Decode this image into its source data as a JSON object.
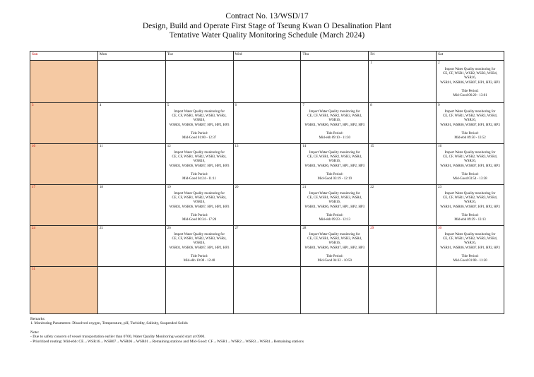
{
  "title": {
    "line1": "Contract No. 13/WSD/17",
    "line2": "Design, Build and Operate First Stage of Tseung Kwan O Desalination Plant",
    "line3": "Tentative Water Quality Monitoring Schedule (March 2024)"
  },
  "colors": {
    "sunday_shade": "#F5C9A3",
    "holiday_red": "#C00000",
    "grid_line": "#2b2b2b"
  },
  "calendar": {
    "month": "March 2024",
    "day_headers": [
      "Sun",
      "Mon",
      "Tue",
      "Wed",
      "Thu",
      "Fri",
      "Sat"
    ],
    "monitoring_text": {
      "line1": "Import Water Quality monitoring for",
      "line2": "CE, CF, WSR1, WSR2, WSR3, WSR4, WSR16,",
      "line3": "WSR01, WSR06, WSR07, HP1, HP2, HP3",
      "tide_label": "Tide Period:"
    },
    "weeks": [
      [
        {
          "date": "",
          "shaded": true
        },
        {
          "date": ""
        },
        {
          "date": ""
        },
        {
          "date": ""
        },
        {
          "date": ""
        },
        {
          "date": "1"
        },
        {
          "date": "2",
          "monitoring": true,
          "tide": "Mid-Good 06:20 - 13:01"
        }
      ],
      [
        {
          "date": "3",
          "shaded": true,
          "red": true
        },
        {
          "date": "4"
        },
        {
          "date": "5",
          "monitoring": true,
          "tide": "Mid-Good 01:00 - 12:37"
        },
        {
          "date": "6"
        },
        {
          "date": "7",
          "monitoring": true,
          "tide": "Mid-ebb 09:10 - 11:30"
        },
        {
          "date": "8"
        },
        {
          "date": "9",
          "monitoring": true,
          "tide": "Mid-ebb 09:50 - 13:52"
        }
      ],
      [
        {
          "date": "10",
          "shaded": true,
          "red": true
        },
        {
          "date": "11"
        },
        {
          "date": "12",
          "monitoring": true,
          "tide": "Mid-Good 04:24 - 11:11"
        },
        {
          "date": "13"
        },
        {
          "date": "14",
          "monitoring": true,
          "tide": "Mid-Good 03:19 - 12:19"
        },
        {
          "date": "15"
        },
        {
          "date": "16",
          "monitoring": true,
          "tide": "Mid-Good 03:54 - 13:38"
        }
      ],
      [
        {
          "date": "17",
          "shaded": true,
          "red": true
        },
        {
          "date": "18"
        },
        {
          "date": "19",
          "monitoring": true,
          "tide": "Mid-Good 00:34 - 17:20"
        },
        {
          "date": "20"
        },
        {
          "date": "21",
          "monitoring": true,
          "tide": "Mid-ebb 09:23 - 12:13"
        },
        {
          "date": "22"
        },
        {
          "date": "23",
          "monitoring": true,
          "tide": "Mid-ebb 09:29 - 13:13"
        }
      ],
      [
        {
          "date": "24",
          "shaded": true,
          "red": true
        },
        {
          "date": "25"
        },
        {
          "date": "26",
          "monitoring": true,
          "tide": "Mid-ebb 10:08 - 12:48"
        },
        {
          "date": "27"
        },
        {
          "date": "28",
          "monitoring": true,
          "tide": "Mid-Good 04:32 - 10:50"
        },
        {
          "date": "29",
          "red": true
        },
        {
          "date": "30",
          "red": true,
          "monitoring": true,
          "tide": "Mid-Good 01:08 - 11:20"
        }
      ],
      [
        {
          "date": "31",
          "shaded": true,
          "red": true
        },
        {
          "date": ""
        },
        {
          "date": ""
        },
        {
          "date": ""
        },
        {
          "date": ""
        },
        {
          "date": ""
        },
        {
          "date": ""
        }
      ]
    ]
  },
  "remarks": {
    "heading": "Remarks:",
    "parameters": "1. Monitoring Parameters: Dissolved oxygen, Temperature, pH, Turbidity, Salinity, Suspended Solids",
    "note_heading": "Note:",
    "note1": "- Due to safety concern of vessel transportation earlier than 0700, Water Quality Monitoring would start at 0900.",
    "note2": "- Prioritized routing: Mid-ebb: CE→WSR16→WSR07→WSR06→WSR01→Remaining stations and Mid-Good: CF→WSR1→WSR2→WSR3→WSR4→Remaining stations"
  }
}
